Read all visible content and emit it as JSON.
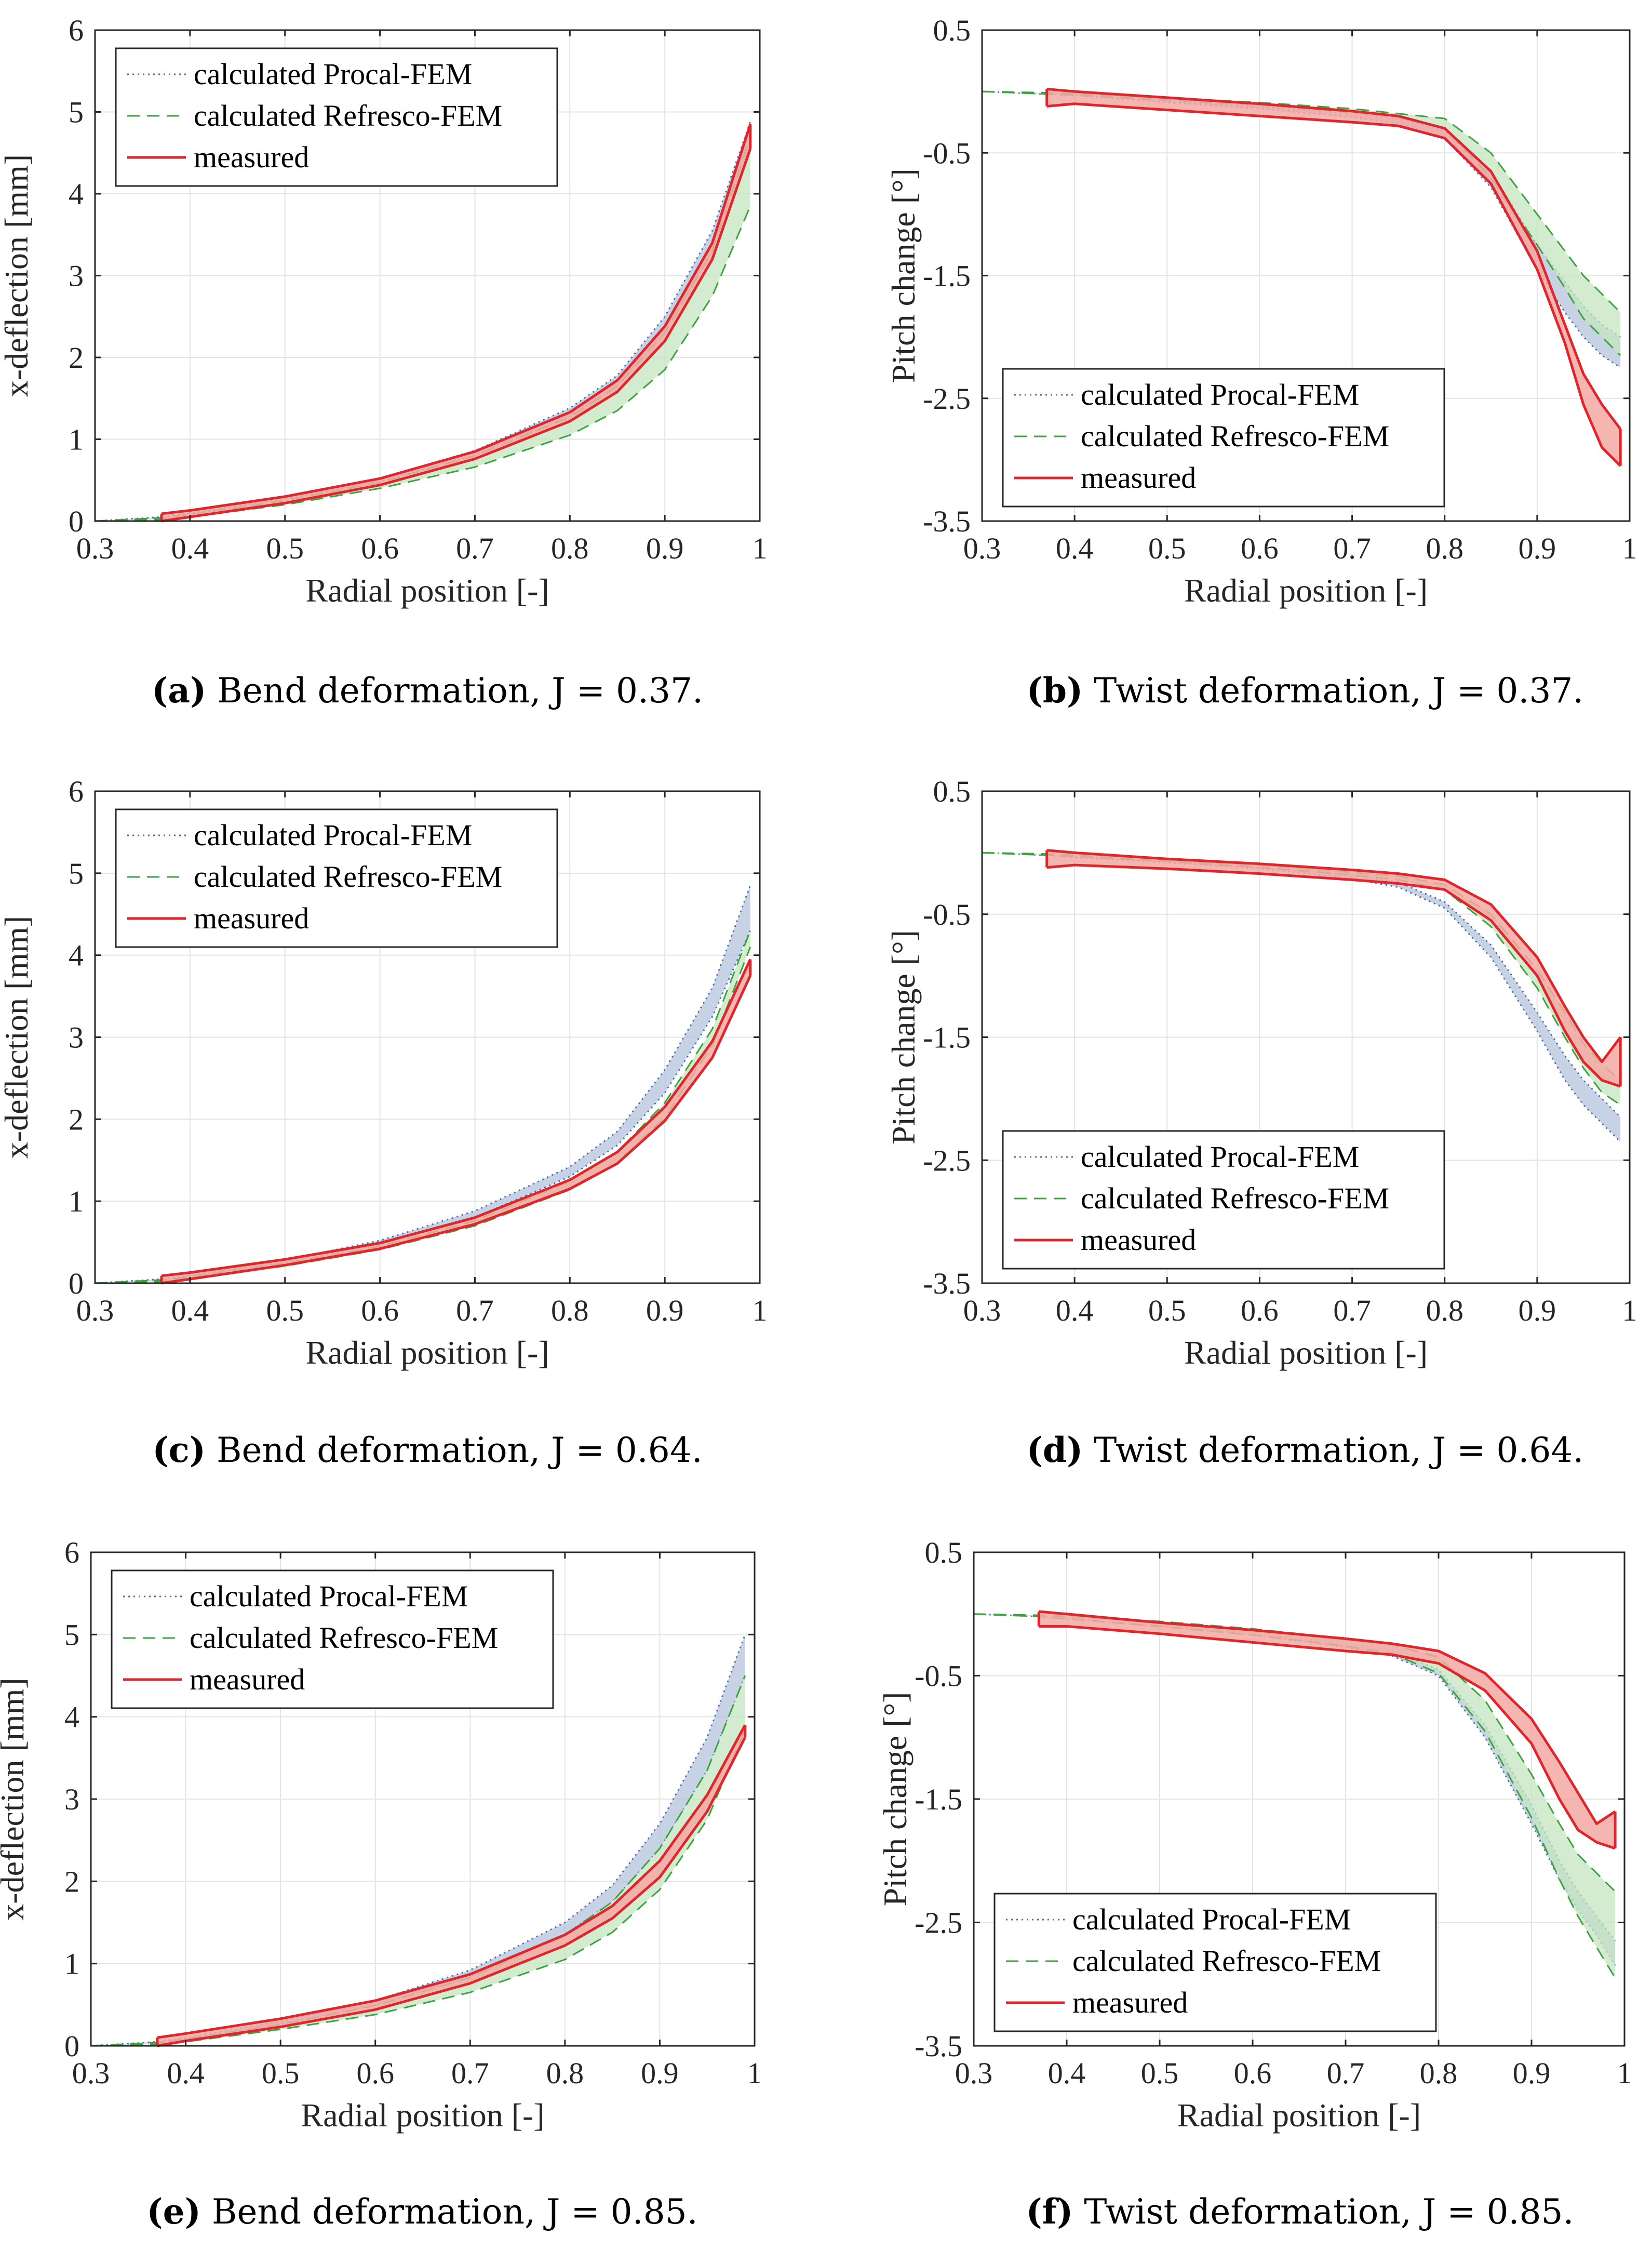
{
  "figure": {
    "legend_entries": [
      "calculated Procal-FEM",
      "calculated Refresco-FEM",
      "measured"
    ],
    "series_colors": {
      "procal": "#4a6fb0",
      "refresco": "#3ea33e",
      "measured": "#e0252b",
      "procal_fill": "#b4c3dc",
      "refresco_fill": "#c4e6c0",
      "measured_fill": "#f3a9a4"
    }
  },
  "chart_data": [
    {
      "id": "a",
      "type": "area",
      "title": "",
      "caption": {
        "letter": "(a)",
        "text": " Bend deformation, J = 0.37."
      },
      "xlabel": "Radial position [-]",
      "ylabel": "x-deflection [mm]",
      "xlim": [
        0.3,
        1.0
      ],
      "ylim": [
        0,
        6
      ],
      "grid": true,
      "legend_position": "top-left",
      "xticks": [
        "0.3",
        "0.4",
        "0.5",
        "0.6",
        "0.7",
        "0.8",
        "0.9",
        "1"
      ],
      "yticks": [
        "0",
        "1",
        "2",
        "3",
        "4",
        "5",
        "6"
      ],
      "x": [
        0.3,
        0.37,
        0.4,
        0.5,
        0.6,
        0.7,
        0.8,
        0.85,
        0.9,
        0.95,
        0.99
      ],
      "series": [
        {
          "name": "calculated Procal-FEM",
          "start_index": 0,
          "upper": [
            0.0,
            0.05,
            0.1,
            0.28,
            0.52,
            0.86,
            1.38,
            1.78,
            2.5,
            3.55,
            4.88
          ],
          "lower": [
            0.0,
            0.04,
            0.08,
            0.26,
            0.48,
            0.8,
            1.28,
            1.65,
            2.3,
            3.3,
            4.6
          ]
        },
        {
          "name": "calculated Refresco-FEM",
          "start_index": 0,
          "upper": [
            0.0,
            0.04,
            0.08,
            0.25,
            0.47,
            0.8,
            1.27,
            1.65,
            2.3,
            3.3,
            4.7
          ],
          "lower": [
            0.0,
            0.02,
            0.05,
            0.2,
            0.4,
            0.66,
            1.05,
            1.35,
            1.85,
            2.75,
            3.85
          ]
        },
        {
          "name": "measured",
          "start_index": 1,
          "upper": [
            null,
            0.09,
            0.13,
            0.3,
            0.52,
            0.85,
            1.33,
            1.72,
            2.38,
            3.4,
            4.85
          ],
          "lower": [
            null,
            0.0,
            0.05,
            0.22,
            0.44,
            0.76,
            1.22,
            1.58,
            2.2,
            3.2,
            4.55
          ]
        }
      ]
    },
    {
      "id": "b",
      "type": "area",
      "title": "",
      "caption": {
        "letter": "(b)",
        "text": " Twist deformation, J = 0.37."
      },
      "xlabel": "Radial position [-]",
      "ylabel": "Pitch change [°]",
      "xlim": [
        0.3,
        1.0
      ],
      "ylim": [
        -3.5,
        0.5
      ],
      "grid": true,
      "legend_position": "bottom-left",
      "xticks": [
        "0.3",
        "0.4",
        "0.5",
        "0.6",
        "0.7",
        "0.8",
        "0.9",
        "1"
      ],
      "yticks": [
        "-3.5",
        "-2.5",
        "-1.5",
        "-0.5",
        "0.5"
      ],
      "x": [
        0.3,
        0.37,
        0.4,
        0.5,
        0.6,
        0.7,
        0.75,
        0.8,
        0.85,
        0.9,
        0.93,
        0.95,
        0.97,
        0.99
      ],
      "series": [
        {
          "name": "calculated Procal-FEM",
          "start_index": 0,
          "upper": [
            0.0,
            -0.02,
            -0.03,
            -0.08,
            -0.12,
            -0.18,
            -0.22,
            -0.32,
            -0.65,
            -1.25,
            -1.55,
            -1.75,
            -1.9,
            -2.0
          ],
          "lower": [
            0.0,
            -0.02,
            -0.03,
            -0.09,
            -0.14,
            -0.21,
            -0.26,
            -0.38,
            -0.78,
            -1.45,
            -1.8,
            -2.0,
            -2.15,
            -2.25
          ]
        },
        {
          "name": "calculated Refresco-FEM",
          "start_index": 0,
          "upper": [
            0.0,
            -0.01,
            -0.02,
            -0.05,
            -0.09,
            -0.14,
            -0.18,
            -0.22,
            -0.5,
            -1.0,
            -1.3,
            -1.5,
            -1.65,
            -1.8
          ],
          "lower": [
            0.0,
            -0.02,
            -0.03,
            -0.07,
            -0.11,
            -0.17,
            -0.21,
            -0.3,
            -0.7,
            -1.25,
            -1.6,
            -1.85,
            -2.0,
            -2.15
          ]
        },
        {
          "name": "measured",
          "start_index": 1,
          "upper": [
            null,
            0.02,
            0.0,
            -0.05,
            -0.1,
            -0.16,
            -0.2,
            -0.3,
            -0.65,
            -1.3,
            -1.9,
            -2.3,
            -2.55,
            -2.75
          ],
          "lower": [
            null,
            -0.12,
            -0.1,
            -0.15,
            -0.2,
            -0.25,
            -0.28,
            -0.38,
            -0.75,
            -1.45,
            -2.05,
            -2.55,
            -2.9,
            -3.05
          ]
        }
      ]
    },
    {
      "id": "c",
      "type": "area",
      "title": "",
      "caption": {
        "letter": "(c)",
        "text": " Bend deformation, J = 0.64."
      },
      "xlabel": "Radial position [-]",
      "ylabel": "x-deflection [mm]",
      "xlim": [
        0.3,
        1.0
      ],
      "ylim": [
        0,
        6
      ],
      "grid": true,
      "legend_position": "top-left",
      "xticks": [
        "0.3",
        "0.4",
        "0.5",
        "0.6",
        "0.7",
        "0.8",
        "0.9",
        "1"
      ],
      "yticks": [
        "0",
        "1",
        "2",
        "3",
        "4",
        "5",
        "6"
      ],
      "x": [
        0.3,
        0.37,
        0.4,
        0.5,
        0.6,
        0.7,
        0.8,
        0.85,
        0.9,
        0.95,
        0.99
      ],
      "series": [
        {
          "name": "calculated Procal-FEM",
          "start_index": 0,
          "upper": [
            0.0,
            0.05,
            0.1,
            0.28,
            0.52,
            0.88,
            1.42,
            1.85,
            2.6,
            3.6,
            4.85
          ],
          "lower": [
            0.0,
            0.04,
            0.08,
            0.25,
            0.47,
            0.8,
            1.3,
            1.68,
            2.32,
            3.25,
            4.3
          ]
        },
        {
          "name": "calculated Refresco-FEM",
          "start_index": 0,
          "upper": [
            0.0,
            0.04,
            0.08,
            0.24,
            0.45,
            0.76,
            1.24,
            1.6,
            2.2,
            3.1,
            4.3
          ],
          "lower": [
            0.0,
            0.02,
            0.06,
            0.21,
            0.41,
            0.7,
            1.14,
            1.47,
            2.02,
            2.9,
            4.1
          ]
        },
        {
          "name": "measured",
          "start_index": 1,
          "upper": [
            null,
            0.09,
            0.13,
            0.29,
            0.49,
            0.8,
            1.26,
            1.6,
            2.15,
            2.95,
            3.95
          ],
          "lower": [
            null,
            0.0,
            0.05,
            0.22,
            0.42,
            0.72,
            1.15,
            1.46,
            1.98,
            2.75,
            3.75
          ]
        }
      ]
    },
    {
      "id": "d",
      "type": "area",
      "title": "",
      "caption": {
        "letter": "(d)",
        "text": " Twist deformation, J = 0.64."
      },
      "xlabel": "Radial position [-]",
      "ylabel": "Pitch change [°]",
      "xlim": [
        0.3,
        1.0
      ],
      "ylim": [
        -3.5,
        0.5
      ],
      "grid": true,
      "legend_position": "bottom-left",
      "xticks": [
        "0.3",
        "0.4",
        "0.5",
        "0.6",
        "0.7",
        "0.8",
        "0.9",
        "1"
      ],
      "yticks": [
        "-3.5",
        "-2.5",
        "-1.5",
        "-0.5",
        "0.5"
      ],
      "x": [
        0.3,
        0.37,
        0.4,
        0.5,
        0.6,
        0.7,
        0.75,
        0.8,
        0.85,
        0.9,
        0.93,
        0.95,
        0.97,
        0.99
      ],
      "series": [
        {
          "name": "calculated Procal-FEM",
          "start_index": 0,
          "upper": [
            0.0,
            -0.02,
            -0.03,
            -0.07,
            -0.11,
            -0.18,
            -0.24,
            -0.4,
            -0.75,
            -1.3,
            -1.65,
            -1.85,
            -2.0,
            -2.15
          ],
          "lower": [
            0.0,
            -0.02,
            -0.04,
            -0.08,
            -0.13,
            -0.21,
            -0.28,
            -0.45,
            -0.85,
            -1.45,
            -1.85,
            -2.05,
            -2.2,
            -2.35
          ]
        },
        {
          "name": "calculated Refresco-FEM",
          "start_index": 0,
          "upper": [
            0.0,
            -0.01,
            -0.02,
            -0.06,
            -0.1,
            -0.16,
            -0.19,
            -0.26,
            -0.5,
            -0.95,
            -1.3,
            -1.55,
            -1.72,
            -1.85
          ],
          "lower": [
            0.0,
            -0.02,
            -0.03,
            -0.07,
            -0.12,
            -0.18,
            -0.22,
            -0.3,
            -0.6,
            -1.1,
            -1.5,
            -1.75,
            -1.95,
            -2.05
          ]
        },
        {
          "name": "measured",
          "start_index": 1,
          "upper": [
            null,
            0.02,
            0.0,
            -0.05,
            -0.09,
            -0.14,
            -0.17,
            -0.22,
            -0.42,
            -0.85,
            -1.25,
            -1.5,
            -1.7,
            -1.5
          ],
          "lower": [
            null,
            -0.12,
            -0.1,
            -0.13,
            -0.17,
            -0.22,
            -0.25,
            -0.3,
            -0.55,
            -1.0,
            -1.45,
            -1.7,
            -1.85,
            -1.9
          ]
        }
      ]
    },
    {
      "id": "e",
      "type": "area",
      "title": "",
      "caption": {
        "letter": "(e)",
        "text": " Bend deformation, J = 0.85."
      },
      "xlabel": "Radial position [-]",
      "ylabel": "x-deflection [mm]",
      "xlim": [
        0.3,
        1.0
      ],
      "ylim": [
        0,
        6
      ],
      "grid": true,
      "legend_position": "top-left",
      "xticks": [
        "0.3",
        "0.4",
        "0.5",
        "0.6",
        "0.7",
        "0.8",
        "0.9",
        "1"
      ],
      "yticks": [
        "0",
        "1",
        "2",
        "3",
        "4",
        "5",
        "6"
      ],
      "x": [
        0.3,
        0.37,
        0.4,
        0.5,
        0.6,
        0.7,
        0.8,
        0.85,
        0.9,
        0.95,
        0.99
      ],
      "series": [
        {
          "name": "calculated Procal-FEM",
          "start_index": 0,
          "upper": [
            0.0,
            0.05,
            0.1,
            0.3,
            0.55,
            0.92,
            1.5,
            1.95,
            2.7,
            3.75,
            5.0
          ],
          "lower": [
            0.0,
            0.04,
            0.08,
            0.26,
            0.49,
            0.83,
            1.35,
            1.75,
            2.4,
            3.35,
            4.5
          ]
        },
        {
          "name": "calculated Refresco-FEM",
          "start_index": 0,
          "upper": [
            0.0,
            0.04,
            0.08,
            0.26,
            0.49,
            0.83,
            1.35,
            1.75,
            2.4,
            3.35,
            4.5
          ],
          "lower": [
            0.0,
            0.02,
            0.05,
            0.2,
            0.38,
            0.65,
            1.05,
            1.38,
            1.9,
            2.75,
            3.85
          ]
        },
        {
          "name": "measured",
          "start_index": 1,
          "upper": [
            null,
            0.1,
            0.15,
            0.33,
            0.55,
            0.87,
            1.35,
            1.7,
            2.25,
            3.05,
            3.9
          ],
          "lower": [
            null,
            0.0,
            0.06,
            0.23,
            0.44,
            0.76,
            1.22,
            1.55,
            2.05,
            2.85,
            3.75
          ]
        }
      ]
    },
    {
      "id": "f",
      "type": "area",
      "title": "",
      "caption": {
        "letter": "(f)",
        "text": " Twist deformation, J = 0.85."
      },
      "xlabel": "Radial position [-]",
      "ylabel": "Pitch change [°]",
      "xlim": [
        0.3,
        1.0
      ],
      "ylim": [
        -3.5,
        0.5
      ],
      "grid": true,
      "legend_position": "bottom-left",
      "xticks": [
        "0.3",
        "0.4",
        "0.5",
        "0.6",
        "0.7",
        "0.8",
        "0.9",
        "1"
      ],
      "yticks": [
        "-3.5",
        "-2.5",
        "-1.5",
        "-0.5",
        "0.5"
      ],
      "x": [
        0.3,
        0.37,
        0.4,
        0.5,
        0.6,
        0.7,
        0.75,
        0.8,
        0.85,
        0.9,
        0.93,
        0.95,
        0.97,
        0.99
      ],
      "series": [
        {
          "name": "calculated Procal-FEM",
          "start_index": 0,
          "upper": [
            0.0,
            -0.02,
            -0.04,
            -0.09,
            -0.15,
            -0.24,
            -0.3,
            -0.45,
            -0.9,
            -1.55,
            -2.0,
            -2.25,
            -2.45,
            -2.65
          ],
          "lower": [
            0.0,
            -0.02,
            -0.04,
            -0.1,
            -0.17,
            -0.27,
            -0.34,
            -0.5,
            -1.0,
            -1.7,
            -2.15,
            -2.4,
            -2.6,
            -2.85
          ]
        },
        {
          "name": "calculated Refresco-FEM",
          "start_index": 0,
          "upper": [
            0.0,
            -0.01,
            -0.02,
            -0.06,
            -0.12,
            -0.2,
            -0.25,
            -0.35,
            -0.7,
            -1.3,
            -1.7,
            -1.95,
            -2.1,
            -2.25
          ],
          "lower": [
            0.0,
            -0.02,
            -0.04,
            -0.1,
            -0.17,
            -0.26,
            -0.32,
            -0.48,
            -0.95,
            -1.65,
            -2.15,
            -2.45,
            -2.7,
            -2.95
          ]
        },
        {
          "name": "measured",
          "start_index": 1,
          "upper": [
            null,
            0.02,
            0.0,
            -0.07,
            -0.13,
            -0.2,
            -0.24,
            -0.3,
            -0.48,
            -0.85,
            -1.2,
            -1.45,
            -1.7,
            -1.6
          ],
          "lower": [
            null,
            -0.1,
            -0.1,
            -0.16,
            -0.23,
            -0.3,
            -0.33,
            -0.4,
            -0.62,
            -1.05,
            -1.5,
            -1.75,
            -1.85,
            -1.9
          ]
        }
      ]
    }
  ]
}
